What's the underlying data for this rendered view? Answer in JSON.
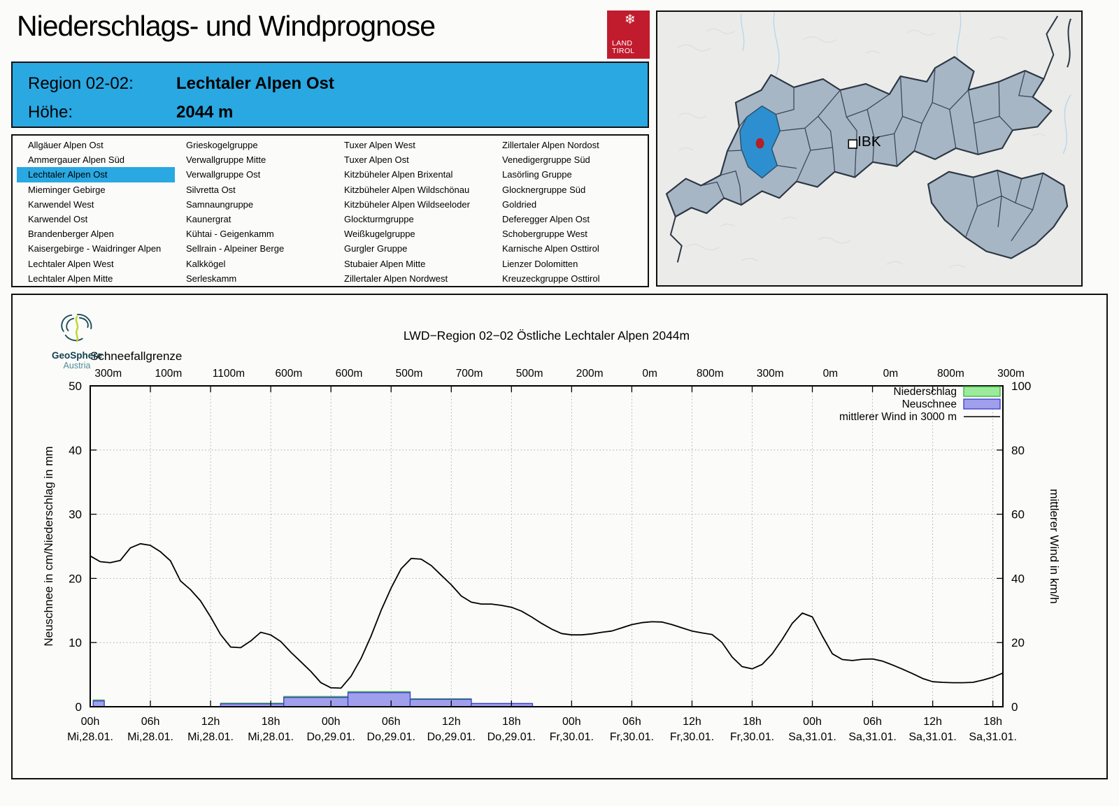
{
  "header": {
    "title": "Niederschlags- und Windprognose",
    "logo_line1": "LAND",
    "logo_line2": "TIROL",
    "region_label": "Region 02-02:",
    "region_value": "Lechtaler Alpen Ost",
    "altitude_label": "Höhe:",
    "altitude_value": "2044 m"
  },
  "region_list": {
    "selected": "Lechtaler Alpen Ost",
    "columns": [
      [
        "Allgäuer Alpen Ost",
        "Ammergauer Alpen Süd",
        "Lechtaler Alpen Ost",
        "Mieminger Gebirge",
        "Karwendel West",
        "Karwendel Ost",
        "Brandenberger Alpen",
        "Kaisergebirge - Waidringer Alpen",
        "Lechtaler Alpen West",
        "Lechtaler Alpen Mitte"
      ],
      [
        "Grieskogelgruppe",
        "Verwallgruppe Mitte",
        "Verwallgruppe Ost",
        "Silvretta Ost",
        "Samnaungruppe",
        "Kaunergrat",
        "Kühtai - Geigenkamm",
        "Sellrain - Alpeiner Berge",
        "Kalkkögel",
        "Serleskamm"
      ],
      [
        "Tuxer Alpen West",
        "Tuxer Alpen Ost",
        "Kitzbüheler Alpen Brixental",
        "Kitzbüheler Alpen Wildschönau",
        "Kitzbüheler Alpen Wildseeloder",
        "Glockturmgruppe",
        "Weißkugelgruppe",
        "Gurgler Gruppe",
        "Stubaier Alpen Mitte",
        "Zillertaler Alpen Nordwest"
      ],
      [
        "Zillertaler Alpen Nordost",
        "Venedigergruppe Süd",
        "Lasörling Gruppe",
        "Glocknergruppe Süd",
        "Goldried",
        "Deferegger Alpen Ost",
        "Schobergruppe West",
        "Karnische Alpen Osttirol",
        "Lienzer Dolomitten",
        "Kreuzeckgruppe Osttirol"
      ]
    ]
  },
  "map": {
    "city_label": "IBK"
  },
  "geosphere": {
    "line1": "GeoSphere",
    "line2": "Austria"
  },
  "colors": {
    "header_blue": "#29a8e2",
    "logo_red": "#c11b2e",
    "map_region_fill": "#a7b6c4",
    "map_border": "#2c3744",
    "map_highlight": "#2e8fd0",
    "marker_red": "#b32025",
    "niederschlag_fill": "#9ceb9c",
    "niederschlag_stroke": "#3caf3c",
    "neuschnee_fill": "#9f9fec",
    "neuschnee_stroke": "#3b3bd1",
    "wind_line": "#000000"
  },
  "chart_data": {
    "type": "composite",
    "title": "LWD−Region 02−02 Östliche Lechtaler Alpen 2044m",
    "top_axis": {
      "label": "Schneefallgrenze",
      "values": [
        "300m",
        "100m",
        "1100m",
        "600m",
        "600m",
        "500m",
        "700m",
        "500m",
        "200m",
        "0m",
        "800m",
        "300m",
        "0m",
        "0m",
        "800m",
        "300m"
      ]
    },
    "y_left": {
      "label": "Neuschnee in cm/Niederschlag in mm",
      "min": 0,
      "max": 50,
      "ticks": [
        0,
        10,
        20,
        30,
        40,
        50
      ]
    },
    "y_right": {
      "label": "mittlerer Wind in km/h",
      "min": 0,
      "max": 100,
      "ticks": [
        0,
        20,
        40,
        60,
        80,
        100
      ]
    },
    "x_axis": {
      "hours_domain": [
        0,
        91
      ],
      "tick_every_h": 6,
      "labels": [
        {
          "time": "00h",
          "date": "Mi,28.01."
        },
        {
          "time": "06h",
          "date": "Mi,28.01."
        },
        {
          "time": "12h",
          "date": "Mi,28.01."
        },
        {
          "time": "18h",
          "date": "Mi,28.01."
        },
        {
          "time": "00h",
          "date": "Do,29.01."
        },
        {
          "time": "06h",
          "date": "Do,29.01."
        },
        {
          "time": "12h",
          "date": "Do,29.01."
        },
        {
          "time": "18h",
          "date": "Do,29.01."
        },
        {
          "time": "00h",
          "date": "Fr,30.01."
        },
        {
          "time": "06h",
          "date": "Fr,30.01."
        },
        {
          "time": "12h",
          "date": "Fr,30.01."
        },
        {
          "time": "18h",
          "date": "Fr,30.01."
        },
        {
          "time": "00h",
          "date": "Sa,31.01."
        },
        {
          "time": "06h",
          "date": "Sa,31.01."
        },
        {
          "time": "12h",
          "date": "Sa,31.01."
        },
        {
          "time": "18h",
          "date": "Sa,31.01."
        }
      ]
    },
    "legend": [
      {
        "label": "Niederschlag",
        "type": "bar",
        "fill": "#9ceb9c",
        "stroke": "#3caf3c"
      },
      {
        "label": "Neuschnee",
        "type": "bar",
        "fill": "#9f9fec",
        "stroke": "#3b3bd1"
      },
      {
        "label": "mittlerer Wind in 3000 m",
        "type": "line",
        "stroke": "#000000"
      }
    ],
    "bars": [
      {
        "start_h": 0.3,
        "end_h": 1.4,
        "niederschlag_mm": 1.05,
        "neuschnee_cm": 0.9
      },
      {
        "start_h": 13.0,
        "end_h": 19.3,
        "niederschlag_mm": 0.55,
        "neuschnee_cm": 0.45
      },
      {
        "start_h": 19.3,
        "end_h": 25.7,
        "niederschlag_mm": 1.6,
        "neuschnee_cm": 1.45
      },
      {
        "start_h": 25.7,
        "end_h": 31.9,
        "niederschlag_mm": 2.35,
        "neuschnee_cm": 2.2
      },
      {
        "start_h": 31.9,
        "end_h": 38.0,
        "niederschlag_mm": 1.25,
        "neuschnee_cm": 1.15
      },
      {
        "start_h": 38.0,
        "end_h": 44.1,
        "niederschlag_mm": 0.5,
        "neuschnee_cm": 0.5
      }
    ],
    "wind_series_kmh": [
      [
        0,
        47
      ],
      [
        1,
        45.2
      ],
      [
        2,
        44.9
      ],
      [
        3,
        45.6
      ],
      [
        4,
        49.5
      ],
      [
        5,
        50.8
      ],
      [
        6,
        50.3
      ],
      [
        7,
        48.3
      ],
      [
        8,
        45.5
      ],
      [
        9,
        39.2
      ],
      [
        10,
        36.5
      ],
      [
        11,
        33
      ],
      [
        12,
        28
      ],
      [
        13,
        22.5
      ],
      [
        14,
        18.6
      ],
      [
        15,
        18.4
      ],
      [
        16,
        20.5
      ],
      [
        17,
        23.2
      ],
      [
        18,
        22.4
      ],
      [
        19,
        20.3
      ],
      [
        20,
        17
      ],
      [
        21,
        14
      ],
      [
        22,
        11
      ],
      [
        23,
        7.5
      ],
      [
        24,
        5.9
      ],
      [
        25,
        5.8
      ],
      [
        26,
        9.5
      ],
      [
        27,
        15
      ],
      [
        28,
        22
      ],
      [
        29,
        30
      ],
      [
        30,
        37
      ],
      [
        31,
        43
      ],
      [
        32,
        46.2
      ],
      [
        33,
        46
      ],
      [
        34,
        44
      ],
      [
        35,
        41
      ],
      [
        36,
        38
      ],
      [
        37,
        34.5
      ],
      [
        38,
        32.6
      ],
      [
        39,
        32
      ],
      [
        40,
        32
      ],
      [
        41,
        31.6
      ],
      [
        42,
        31
      ],
      [
        43,
        29.8
      ],
      [
        44,
        28
      ],
      [
        45,
        26
      ],
      [
        46,
        24.2
      ],
      [
        47,
        22.8
      ],
      [
        48,
        22.4
      ],
      [
        49,
        22.4
      ],
      [
        50,
        22.7
      ],
      [
        51,
        23.2
      ],
      [
        52,
        23.6
      ],
      [
        53,
        24.6
      ],
      [
        54,
        25.6
      ],
      [
        55,
        26.2
      ],
      [
        56,
        26.5
      ],
      [
        57,
        26.4
      ],
      [
        58,
        25.6
      ],
      [
        59,
        24.6
      ],
      [
        60,
        23.6
      ],
      [
        61,
        23
      ],
      [
        62,
        22.5
      ],
      [
        63,
        20
      ],
      [
        64,
        15.5
      ],
      [
        65,
        12.5
      ],
      [
        66,
        11.8
      ],
      [
        67,
        13.2
      ],
      [
        68,
        16.5
      ],
      [
        69,
        21
      ],
      [
        70,
        26
      ],
      [
        71,
        29.2
      ],
      [
        72,
        28
      ],
      [
        73,
        22
      ],
      [
        74,
        16.5
      ],
      [
        75,
        14.7
      ],
      [
        76,
        14.4
      ],
      [
        77,
        14.8
      ],
      [
        78,
        14.9
      ],
      [
        79,
        14.2
      ],
      [
        80,
        13
      ],
      [
        81,
        11.7
      ],
      [
        82,
        10.3
      ],
      [
        83,
        8.8
      ],
      [
        84,
        7.8
      ],
      [
        85,
        7.6
      ],
      [
        86,
        7.5
      ],
      [
        87,
        7.5
      ],
      [
        88,
        7.6
      ],
      [
        89,
        8.3
      ],
      [
        90,
        9.2
      ],
      [
        91,
        10.5
      ]
    ]
  }
}
